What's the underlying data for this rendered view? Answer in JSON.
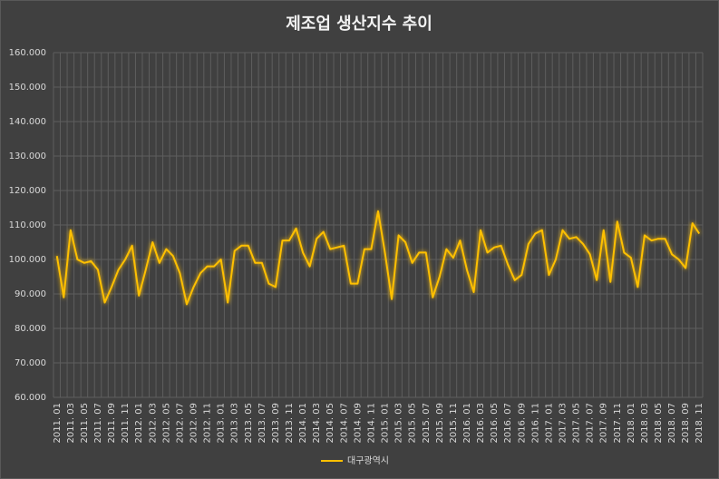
{
  "chart_data": {
    "type": "line",
    "title": "제조업 생산지수 추이",
    "categories": [
      "2011. 01",
      null,
      "2011. 03",
      null,
      "2011. 05",
      null,
      "2011. 07",
      null,
      "2011. 09",
      null,
      "2011. 11",
      null,
      "2012. 01",
      null,
      "2012. 03",
      null,
      "2012. 05",
      null,
      "2012. 07",
      null,
      "2012. 09",
      null,
      "2012. 11",
      null,
      "2013. 01",
      null,
      "2013. 03",
      null,
      "2013. 05",
      null,
      "2013. 07",
      null,
      "2013. 09",
      null,
      "2013. 11",
      null,
      "2014. 01",
      null,
      "2014. 03",
      null,
      "2014. 05",
      null,
      "2014. 07",
      null,
      "2014. 09",
      null,
      "2014. 11",
      null,
      "2015. 01",
      null,
      "2015. 03",
      null,
      "2015. 05",
      null,
      "2015. 07",
      null,
      "2015. 09",
      null,
      "2015. 11",
      null,
      "2016. 01",
      null,
      "2016. 03",
      null,
      "2016. 05",
      null,
      "2016. 07",
      null,
      "2016. 09",
      null,
      "2016. 11",
      null,
      "2017. 01",
      null,
      "2017. 03",
      null,
      "2017. 05",
      null,
      "2017. 07",
      null,
      "2017. 09",
      null,
      "2017. 11",
      null,
      "2018. 01",
      null,
      "2018. 03",
      null,
      "2018. 05",
      null,
      "2018. 07",
      null,
      "2018. 09",
      null,
      "2018. 11"
    ],
    "series": [
      {
        "name": "대구광역시",
        "color": "#ffc000",
        "values": [
          101,
          89,
          108.5,
          100,
          99,
          99.5,
          97,
          87.5,
          92,
          97,
          100,
          104,
          89.5,
          97,
          105,
          99,
          103,
          101,
          96,
          87,
          92,
          96,
          98,
          98,
          100,
          87.5,
          102.5,
          104,
          104,
          99,
          99,
          93,
          92,
          105.5,
          105.5,
          109,
          102,
          98,
          106,
          108,
          103,
          103.5,
          104,
          93,
          93,
          103,
          103,
          114,
          102,
          88.5,
          107,
          105,
          99,
          102,
          102,
          89,
          95,
          103,
          100.5,
          105.5,
          97,
          90.5,
          108.5,
          102,
          103.5,
          104,
          98.5,
          94,
          95.5,
          104.5,
          107.5,
          108.5,
          95.5,
          100,
          108.5,
          106,
          106.5,
          104.5,
          101.5,
          94,
          108.5,
          93.5,
          111,
          102,
          100.5,
          92,
          107,
          105.5,
          106,
          106,
          101.5,
          100,
          97.5,
          110.5,
          107.5
        ]
      }
    ],
    "ylim": [
      60,
      160
    ],
    "yticks": [
      {
        "value": 60,
        "label": "60.000"
      },
      {
        "value": 70,
        "label": "70.000"
      },
      {
        "value": 80,
        "label": "80.000"
      },
      {
        "value": 90,
        "label": "90.000"
      },
      {
        "value": 100,
        "label": "100.000"
      },
      {
        "value": 110,
        "label": "110.000"
      },
      {
        "value": 120,
        "label": "120.000"
      },
      {
        "value": 130,
        "label": "130.000"
      },
      {
        "value": 140,
        "label": "140.000"
      },
      {
        "value": 150,
        "label": "150.000"
      },
      {
        "value": 160,
        "label": "160.000"
      }
    ],
    "grid": true,
    "legend": "bottom"
  }
}
